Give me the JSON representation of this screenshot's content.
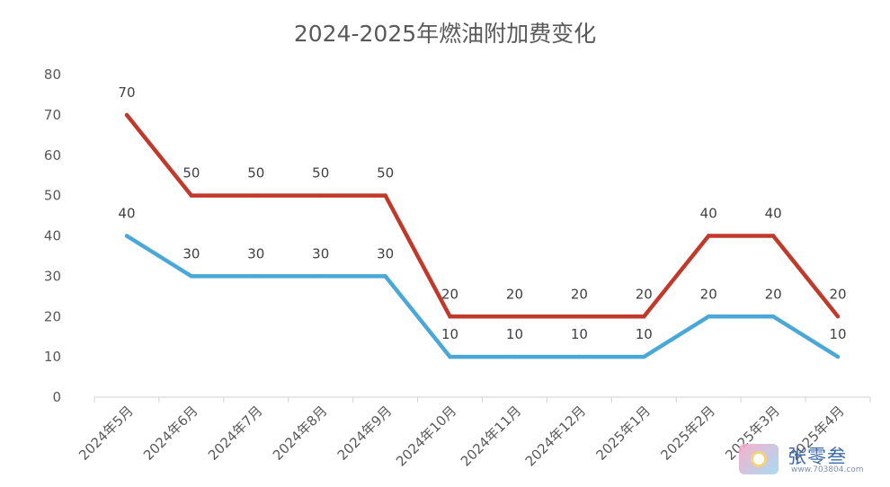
{
  "chart_data": {
    "type": "line",
    "title": "2024-2025年燃油附加费变化",
    "categories": [
      "2024年5月",
      "2024年6月",
      "2024年7月",
      "2024年8月",
      "2024年9月",
      "2024年10月",
      "2024年11月",
      "2024年12月",
      "2025年1月",
      "2025年2月",
      "2025年3月",
      "2025年4月"
    ],
    "series": [
      {
        "values": [
          70,
          50,
          50,
          50,
          50,
          20,
          20,
          20,
          20,
          40,
          40,
          20
        ],
        "color": "#c0392b"
      },
      {
        "values": [
          40,
          30,
          30,
          30,
          30,
          10,
          10,
          10,
          10,
          20,
          20,
          10
        ],
        "color": "#4aa8d8"
      }
    ],
    "ylim": [
      0,
      80
    ],
    "yticks": [
      0,
      10,
      20,
      30,
      40,
      50,
      60,
      70,
      80
    ],
    "grid": false,
    "data_labels": true
  },
  "watermark": {
    "text": "张零叁",
    "sub": "www.703804.com"
  }
}
